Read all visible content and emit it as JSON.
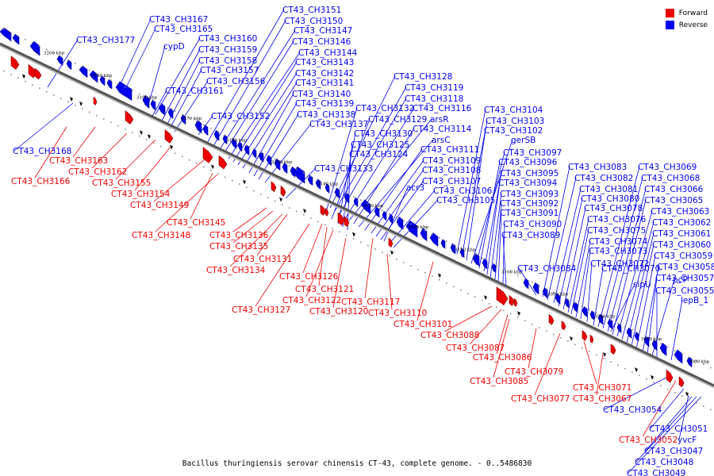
{
  "caption": "Bacillus thuringiensis serovar chinensis CT-43, complete genome. - 0..5486830",
  "legend": [
    {
      "label": "Forward",
      "color": "#ee0000"
    },
    {
      "label": "Reverse",
      "color": "#0000ee"
    }
  ],
  "ticks": [
    "3200 kbp",
    "3190 kbp",
    "3180 kbp",
    "3170 kbp",
    "3160 kbp",
    "3150 kbp",
    "3140 kbp",
    "3130 kbp",
    "3120 kbp",
    "3110 kbp",
    "3100 kbp",
    "3090 kbp",
    "3080 kbp",
    "3070 kbp",
    "3060 kbp"
  ],
  "reverse_labels": [
    "CT43_CH3177",
    "CT43_CH3167",
    "CT43_CH3165",
    "cypD",
    "CT43_CH3160",
    "CT43_CH3159",
    "CT43_CH3158",
    "CT43_CH3157",
    "CT43_CH3156",
    "CT43_CH3161",
    "CT43_CH3168",
    "CT43_CH3152",
    "CT43_CH3151",
    "CT43_CH3150",
    "CT43_CH3147",
    "CT43_CH3146",
    "CT43_CH3144",
    "CT43_CH3143",
    "CT43_CH3142",
    "CT43_CH3141",
    "CT43_CH3140",
    "CT43_CH3139",
    "CT43_CH3138",
    "CT43_CH3137",
    "CT43_CH3133",
    "CT43_CH3128",
    "CT43_CH3119",
    "CT43_CH3118",
    "CT43_CH3132",
    "CT43_CH3116",
    "CT43_CH3129",
    "arsR",
    "CT43_CH3114",
    "CT43_CH3130",
    "arsC",
    "CT43_CH3125",
    "CT43_CH3111",
    "CT43_CH3124",
    "CT43_CH3109",
    "CT43_CH3108",
    "CT43_CH3107",
    "acr3",
    "CT43_CH3106",
    "CT43_CH3105",
    "CT43_CH3104",
    "CT43_CH3103",
    "CT43_CH3102",
    "gerSB",
    "CT43_CH3097",
    "CT43_CH3096",
    "CT43_CH3095",
    "CT43_CH3094",
    "CT43_CH3093",
    "CT43_CH3092",
    "CT43_CH3091",
    "CT43_CH3090",
    "CT43_CH3089",
    "CT43_CH3084",
    "CT43_CH3083",
    "CT43_CH3082",
    "CT43_CH3081",
    "CT43_CH3080",
    "CT43_CH3078",
    "CT43_CH3076",
    "CT43_CH3075",
    "CT43_CH3074",
    "CT43_CH3073",
    "CT43_CH3072",
    "CT43_CH3070",
    "sipU",
    "CT43_CH3069",
    "CT43_CH3068",
    "CT43_CH3066",
    "CT43_CH3065",
    "CT43_CH3063",
    "CT43_CH3062",
    "CT43_CH3061",
    "CT43_CH3060",
    "CT43_CH3059",
    "CT43_CH3058",
    "CT43_CH3057",
    "pcP",
    "CT43_CH3055",
    "lepB_1",
    "CT43_CH3054",
    "CT43_CH3051",
    "yvcF",
    "CT43_CH3047",
    "CT43_CH3048",
    "CT43_CH3049"
  ],
  "forward_labels": [
    "CT43_CH3163",
    "CT43_CH3162",
    "CT43_CH3166",
    "CT43_CH3155",
    "CT43_CH3154",
    "CT43_CH3149",
    "CT43_CH3145",
    "CT43_CH3148",
    "CT43_CH3136",
    "CT43_CH3135",
    "CT43_CH3131",
    "CT43_CH3134",
    "CT43_CH3126",
    "CT43_CH3121",
    "CT43_CH3122",
    "CT43_CH3127",
    "CT43_CH3117",
    "CT43_CH3120",
    "CT43_CH3110",
    "CT43_CH3101",
    "CT43_CH3088",
    "CT43_CH3087",
    "CT43_CH3086",
    "CT43_CH3079",
    "CT43_CH3085",
    "CT43_CH3071",
    "CT43_CH3077",
    "CT43_CH3067",
    "CT43_CH3052"
  ]
}
